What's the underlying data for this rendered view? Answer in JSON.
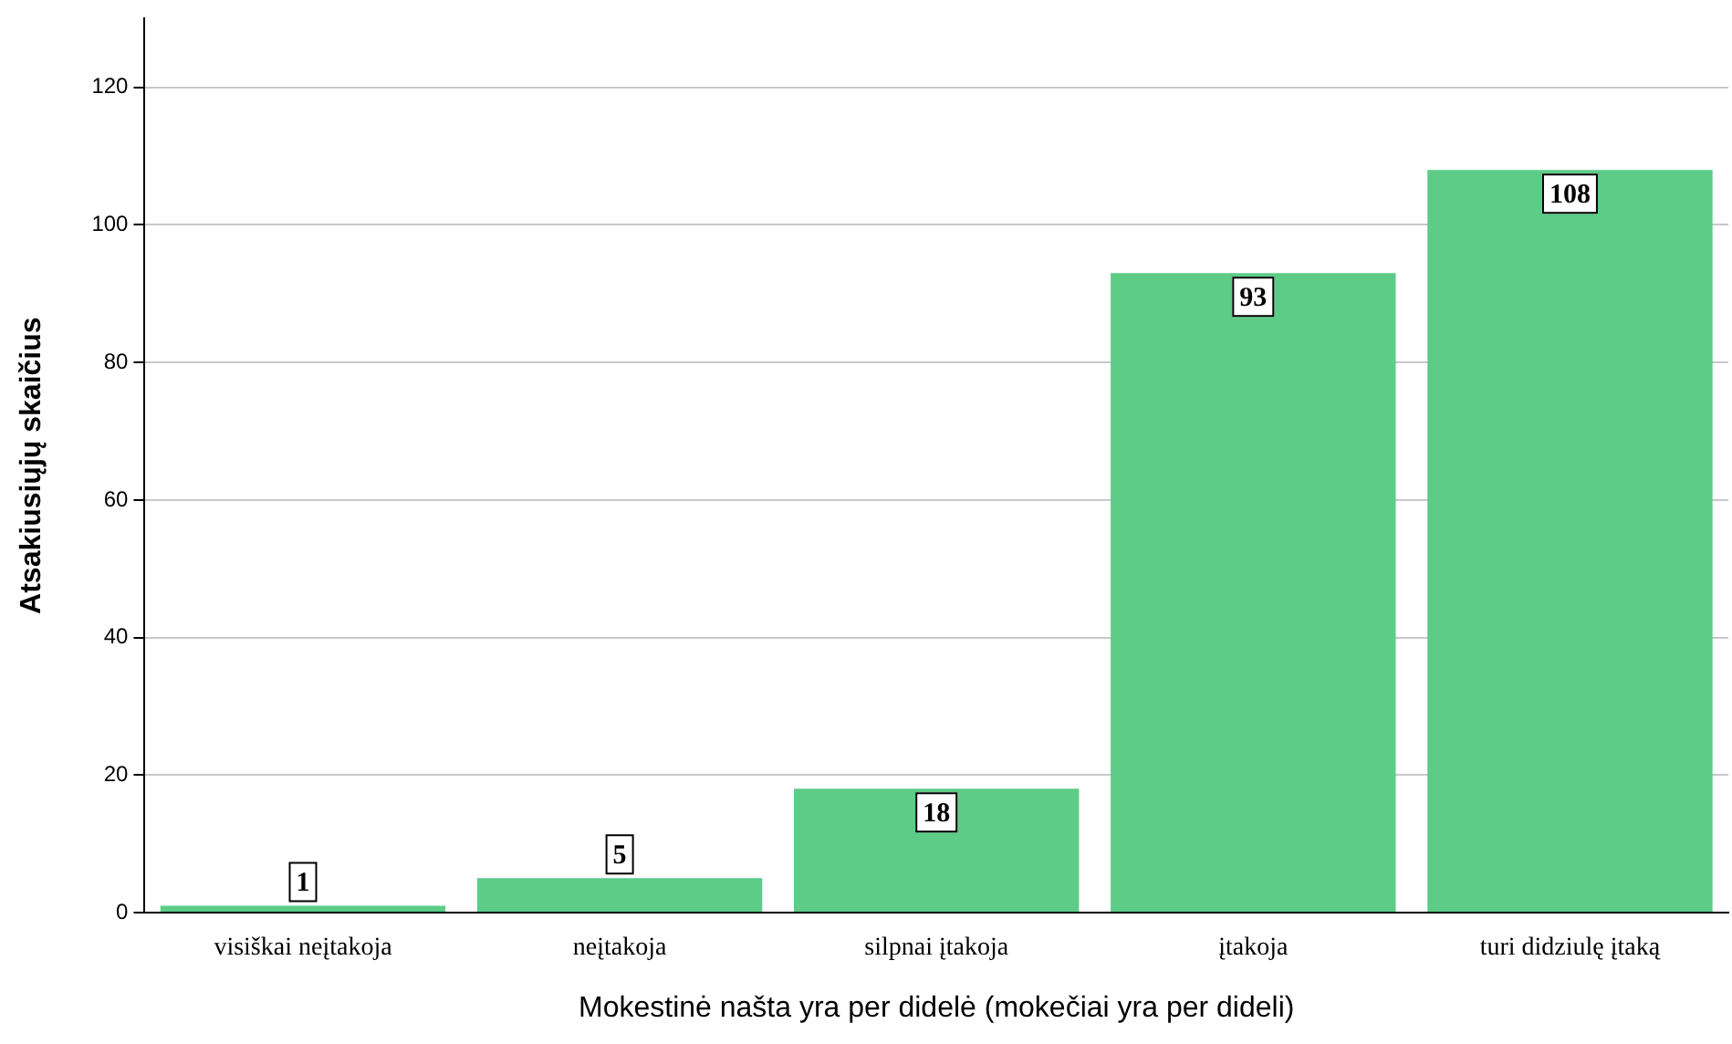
{
  "chart_data": {
    "type": "bar",
    "xlabel": "Mokestinė našta yra per didelė (mokečiai yra per dideli)",
    "ylabel": "Atsakiusiųjų skaičius",
    "categories": [
      "visiškai neįtakoja",
      "neįtakoja",
      "silpnai įtakoja",
      "įtakoja",
      "turi didziulę įtaką"
    ],
    "values": [
      1,
      5,
      18,
      93,
      108
    ],
    "color": "#5ccc87",
    "ylim": [
      0,
      130
    ],
    "yticks": [
      0,
      20,
      40,
      60,
      80,
      100,
      120
    ],
    "grid": "y",
    "data_labels": true,
    "legend": false
  }
}
